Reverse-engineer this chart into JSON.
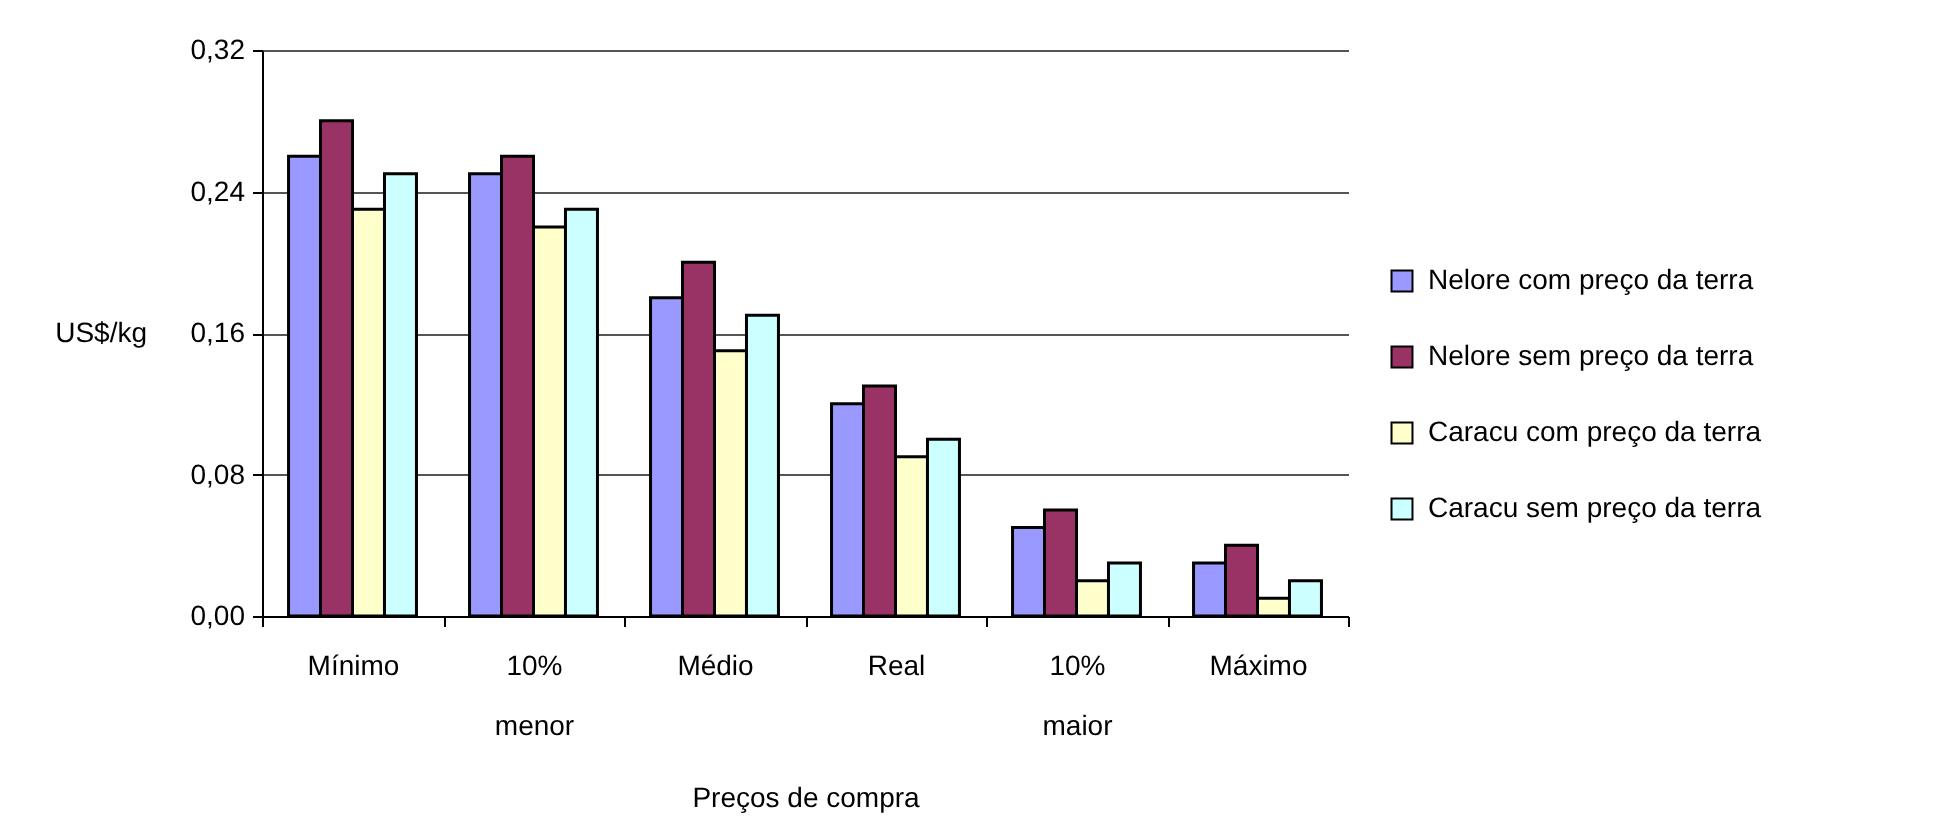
{
  "chart_data": {
    "type": "bar",
    "xlabel": "Preços de compra",
    "ylabel": "US$/kg",
    "categories": [
      "Mínimo",
      "10% menor",
      "Médio",
      "Real",
      "10% maior",
      "Máximo"
    ],
    "series": [
      {
        "name": "Nelore com preço da  terra",
        "color": "#9999ff",
        "values": [
          0.26,
          0.25,
          0.18,
          0.12,
          0.05,
          0.03
        ]
      },
      {
        "name": "Nelore sem preço da terra",
        "color": "#993366",
        "values": [
          0.28,
          0.26,
          0.2,
          0.13,
          0.06,
          0.04
        ]
      },
      {
        "name": "Caracu com preço da terra",
        "color": "#ffffcc",
        "values": [
          0.23,
          0.22,
          0.15,
          0.09,
          0.02,
          0.01
        ]
      },
      {
        "name": "Caracu sem preço da terra",
        "color": "#ccffff",
        "values": [
          0.25,
          0.23,
          0.17,
          0.1,
          0.03,
          0.02
        ]
      }
    ],
    "ylim": [
      0,
      0.32
    ],
    "yticks": [
      {
        "value": 0,
        "label": "0,00"
      },
      {
        "value": 0.08,
        "label": "0,08"
      },
      {
        "value": 0.16,
        "label": "0,16"
      },
      {
        "value": 0.24,
        "label": "0,24"
      },
      {
        "value": 0.32,
        "label": "0,32"
      }
    ],
    "grid": "y",
    "legend": "right"
  }
}
